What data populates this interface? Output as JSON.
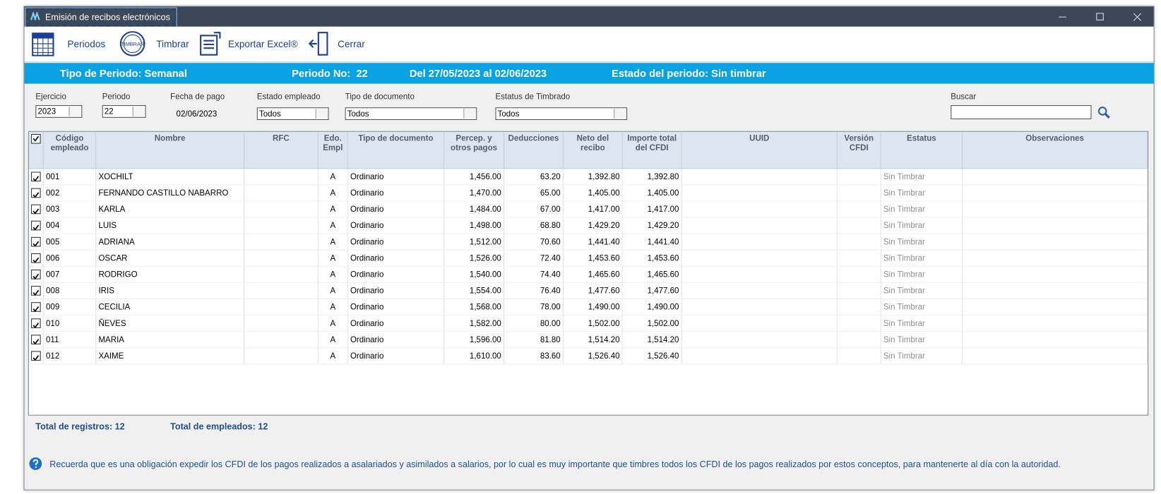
{
  "window": {
    "title": "Emisión de recibos electrónicos"
  },
  "toolbar": {
    "periodos": "Periodos",
    "timbrar_icon": "TIMBRAR",
    "timbrar": "Timbrar",
    "exportar": "Exportar Excel®",
    "cerrar": "Cerrar"
  },
  "period_bar": {
    "tipo": "Tipo de Periodo: Semanal",
    "numero": "Periodo No:  22",
    "rango": "Del 27/05/2023 al 02/06/2023",
    "estado": "Estado del periodo: Sin timbrar"
  },
  "filters": {
    "ejercicio": {
      "label": "Ejercicio",
      "value": "2023"
    },
    "periodo": {
      "label": "Periodo",
      "value": "22"
    },
    "fecha_pago": {
      "label": "Fecha de pago",
      "value": "02/06/2023"
    },
    "estado_empleado": {
      "label": "Estado empleado",
      "value": "Todos"
    },
    "tipo_documento": {
      "label": "Tipo de documento",
      "value": "Todos"
    },
    "estatus_timbrado": {
      "label": "Estatus de Timbrado",
      "value": "Todos"
    },
    "buscar": {
      "label": "Buscar"
    }
  },
  "table": {
    "headers": [
      "Código empleado",
      "Nombre",
      "RFC",
      "Edo. Empl",
      "Tipo de documento",
      "Percep. y otros pagos",
      "Deducciones",
      "Neto del recibo",
      "Importe total del CFDI",
      "UUID",
      "Versión CFDI",
      "Estatus",
      "Observaciones"
    ],
    "rows": [
      {
        "codigo": "001",
        "nombre": "XOCHILT",
        "edo": "A",
        "tipo": "Ordinario",
        "percep": "1,456.00",
        "deducciones": "63.20",
        "neto": "1,392.80",
        "importe": "1,392.80",
        "estatus": "Sin Timbrar"
      },
      {
        "codigo": "002",
        "nombre": "FERNANDO CASTILLO NABARRO",
        "edo": "A",
        "tipo": "Ordinario",
        "percep": "1,470.00",
        "deducciones": "65.00",
        "neto": "1,405.00",
        "importe": "1,405.00",
        "estatus": "Sin Timbrar"
      },
      {
        "codigo": "003",
        "nombre": "KARLA",
        "edo": "A",
        "tipo": "Ordinario",
        "percep": "1,484.00",
        "deducciones": "67.00",
        "neto": "1,417.00",
        "importe": "1,417.00",
        "estatus": "Sin Timbrar"
      },
      {
        "codigo": "004",
        "nombre": "LUIS",
        "edo": "A",
        "tipo": "Ordinario",
        "percep": "1,498.00",
        "deducciones": "68.80",
        "neto": "1,429.20",
        "importe": "1,429.20",
        "estatus": "Sin Timbrar"
      },
      {
        "codigo": "005",
        "nombre": "ADRIANA",
        "edo": "A",
        "tipo": "Ordinario",
        "percep": "1,512.00",
        "deducciones": "70.60",
        "neto": "1,441.40",
        "importe": "1,441.40",
        "estatus": "Sin Timbrar"
      },
      {
        "codigo": "006",
        "nombre": "OSCAR",
        "edo": "A",
        "tipo": "Ordinario",
        "percep": "1,526.00",
        "deducciones": "72.40",
        "neto": "1,453.60",
        "importe": "1,453.60",
        "estatus": "Sin Timbrar"
      },
      {
        "codigo": "007",
        "nombre": "RODRIGO",
        "edo": "A",
        "tipo": "Ordinario",
        "percep": "1,540.00",
        "deducciones": "74.40",
        "neto": "1,465.60",
        "importe": "1,465.60",
        "estatus": "Sin Timbrar"
      },
      {
        "codigo": "008",
        "nombre": "IRIS",
        "edo": "A",
        "tipo": "Ordinario",
        "percep": "1,554.00",
        "deducciones": "76.40",
        "neto": "1,477.60",
        "importe": "1,477.60",
        "estatus": "Sin Timbrar"
      },
      {
        "codigo": "009",
        "nombre": "CECILIA",
        "edo": "A",
        "tipo": "Ordinario",
        "percep": "1,568.00",
        "deducciones": "78.00",
        "neto": "1,490.00",
        "importe": "1,490.00",
        "estatus": "Sin Timbrar"
      },
      {
        "codigo": "010",
        "nombre": "ÑEVES",
        "edo": "A",
        "tipo": "Ordinario",
        "percep": "1,582.00",
        "deducciones": "80.00",
        "neto": "1,502.00",
        "importe": "1,502.00",
        "estatus": "Sin Timbrar"
      },
      {
        "codigo": "011",
        "nombre": "MARIA",
        "edo": "A",
        "tipo": "Ordinario",
        "percep": "1,596.00",
        "deducciones": "81.80",
        "neto": "1,514.20",
        "importe": "1,514.20",
        "estatus": "Sin Timbrar"
      },
      {
        "codigo": "012",
        "nombre": "XAIME",
        "edo": "A",
        "tipo": "Ordinario",
        "percep": "1,610.00",
        "deducciones": "83.60",
        "neto": "1,526.40",
        "importe": "1,526.40",
        "estatus": "Sin Timbrar"
      }
    ]
  },
  "footer": {
    "registros": "Total de registros: 12",
    "empleados": "Total de empleados: 12"
  },
  "notice": "Recuerda que es una obligación expedir los CFDI de los pagos realizados a asalariados y asimilados a salarios, por lo cual es muy importante que timbres todos los CFDI de los pagos realizados por estos conceptos, para mantenerte al día con la autoridad."
}
